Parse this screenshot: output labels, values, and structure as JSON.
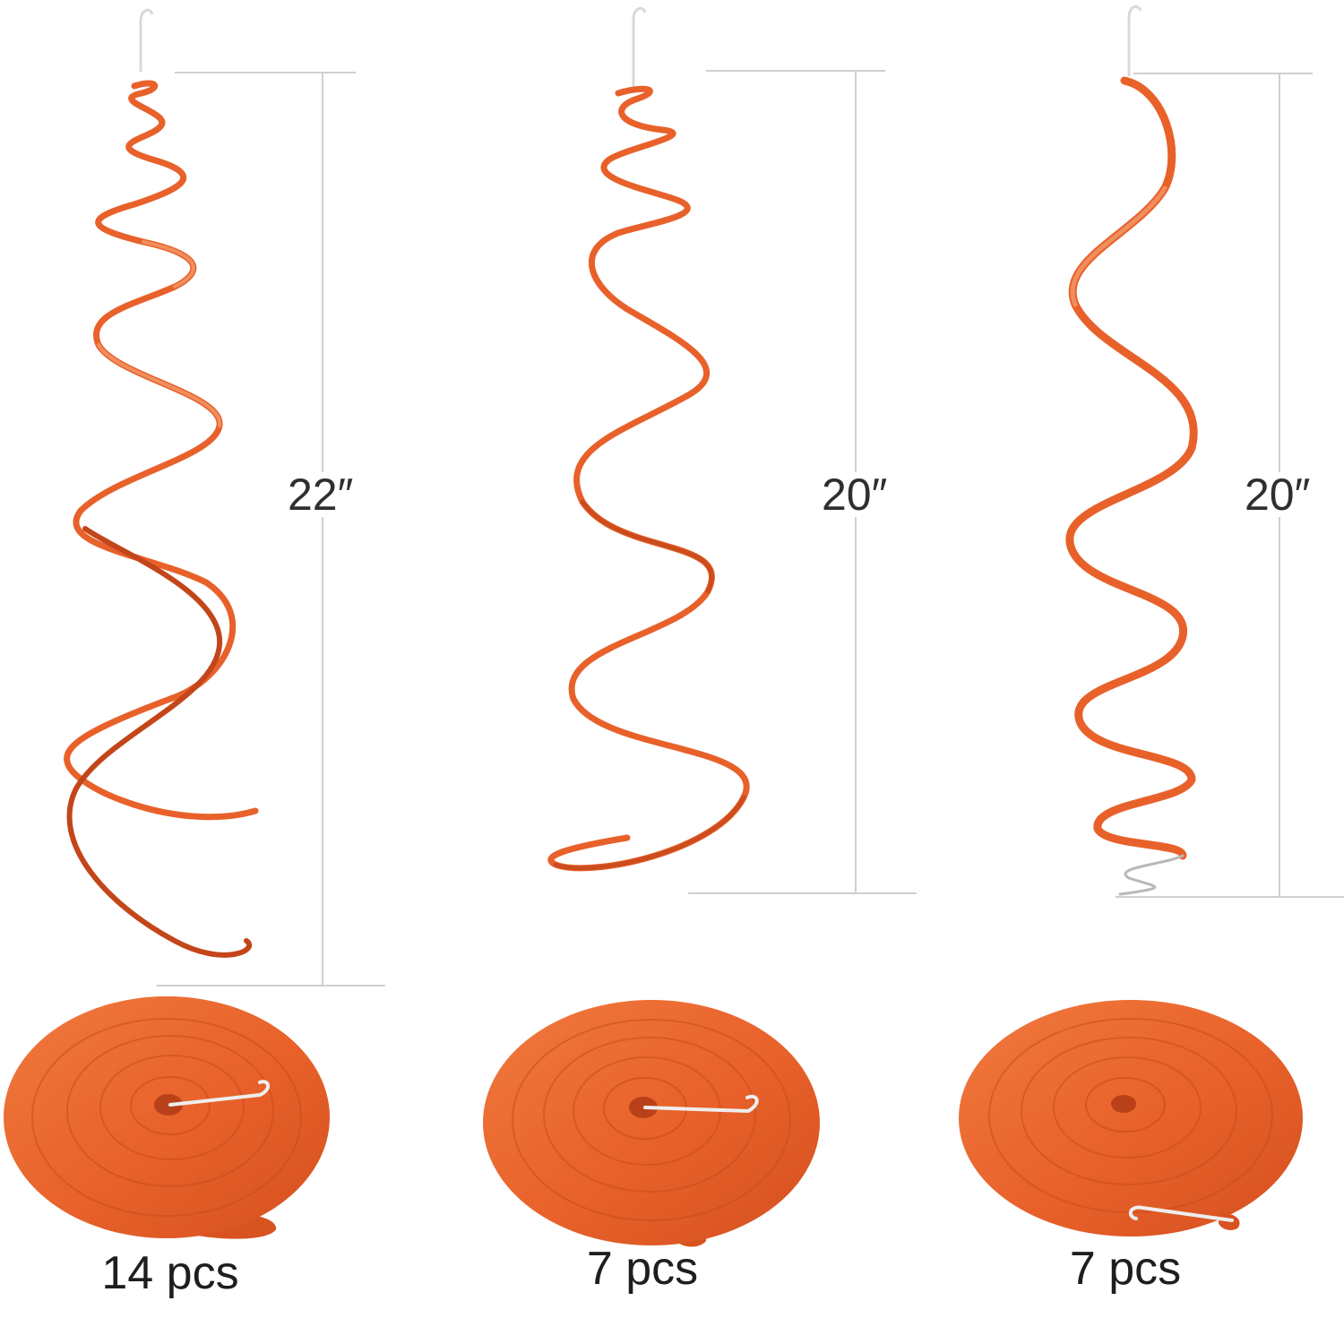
{
  "products": [
    {
      "length_label": "22″",
      "quantity_label": "14 pcs"
    },
    {
      "length_label": "20″",
      "quantity_label": "7 pcs"
    },
    {
      "length_label": "20″",
      "quantity_label": "7 pcs"
    }
  ],
  "colors": {
    "swirl_orange": "#e8612a",
    "swirl_dark": "#c3461a",
    "swirl_light": "#f39a6a",
    "guide_line": "#cfcfcf",
    "hook": "#d9d9d9"
  }
}
